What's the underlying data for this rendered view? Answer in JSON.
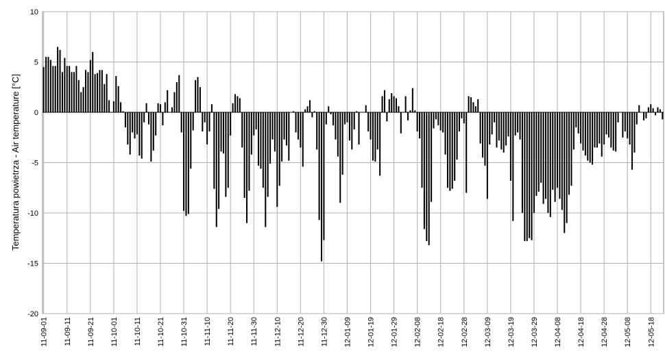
{
  "chart_data": {
    "type": "bar",
    "title": "",
    "xlabel": "",
    "ylabel": "Temperatura powietrza - Air temperature [°C]",
    "ylim": [
      -20,
      10
    ],
    "yticks": [
      -20,
      -15,
      -10,
      -5,
      0,
      5,
      10
    ],
    "grid": true,
    "legend": "none",
    "bar_color": "#000000",
    "x_start": "11-09-01",
    "x_end": "12-05-31",
    "xtick_labels": [
      "11-09-01",
      "11-09-11",
      "11-09-21",
      "11-10-01",
      "11-10-11",
      "11-10-21",
      "11-10-31",
      "11-11-10",
      "11-11-20",
      "11-11-30",
      "11-12-10",
      "11-12-20",
      "11-12-30",
      "12-01-09",
      "12-01-19",
      "12-01-29",
      "12-02-08",
      "12-02-18",
      "12-02-28",
      "12-03-09",
      "12-03-19",
      "12-03-29",
      "12-04-08",
      "12-04-18",
      "12-04-28",
      "12-05-08",
      "12-05-18",
      "12-05-28"
    ],
    "values": [
      4.5,
      5.5,
      5.5,
      5.2,
      4.6,
      4.6,
      6.5,
      6.2,
      4.0,
      5.4,
      4.6,
      4.6,
      4.0,
      4.0,
      4.6,
      3.2,
      2.0,
      2.5,
      4.2,
      4.0,
      5.2,
      6.0,
      3.8,
      3.9,
      4.2,
      4.2,
      2.8,
      3.8,
      1.2,
      0.0,
      1.1,
      3.6,
      2.6,
      1.0,
      0.1,
      -1.5,
      -3.2,
      -4.2,
      -2.0,
      -2.6,
      -2.2,
      -4.3,
      -4.6,
      -1.0,
      0.9,
      -1.2,
      -4.9,
      -3.8,
      -2.3,
      0.9,
      0.8,
      -1.3,
      1.0,
      2.2,
      0.0,
      0.5,
      2.0,
      3.0,
      3.7,
      -2.0,
      -9.8,
      -10.3,
      -10.1,
      -5.6,
      -1.8,
      3.2,
      3.5,
      2.5,
      -1.9,
      -1.0,
      -3.2,
      -1.9,
      0.8,
      -7.6,
      -11.4,
      -9.6,
      -3.9,
      -4.1,
      -8.4,
      -7.5,
      -2.3,
      0.9,
      1.8,
      1.6,
      1.4,
      -3.5,
      -8.5,
      -11.0,
      -7.8,
      -4.2,
      -2.3,
      -1.7,
      -5.3,
      -5.6,
      -7.5,
      -11.4,
      -8.4,
      -5.1,
      -2.7,
      -3.9,
      -9.4,
      -7.3,
      -4.9,
      -2.7,
      -3.3,
      -4.8,
      0.0,
      0.1,
      -2.0,
      -2.7,
      -3.5,
      -5.4,
      0.3,
      0.6,
      1.2,
      -0.5,
      0.1,
      -3.7,
      -10.7,
      -14.8,
      -12.7,
      -1.2,
      0.6,
      -0.2,
      -1.3,
      -2.7,
      -4.4,
      -9.0,
      -6.2,
      -1.2,
      -1.0,
      -2.8,
      -3.7,
      -1.7,
      0.1,
      -3.2,
      0.0,
      0.0,
      0.7,
      -1.9,
      -2.7,
      -4.8,
      -4.9,
      -3.7,
      -6.3,
      1.6,
      2.2,
      -0.9,
      1.3,
      1.9,
      1.6,
      1.4,
      0.6,
      -2.1,
      0.0,
      1.6,
      -0.8,
      0.2,
      2.4,
      0.2,
      -1.9,
      -2.6,
      -7.5,
      -11.6,
      -12.8,
      -13.2,
      -8.9,
      -1.6,
      -0.7,
      -1.3,
      -1.8,
      -2.0,
      -4.2,
      -7.5,
      -7.8,
      -7.6,
      -6.8,
      -4.7,
      -1.9,
      -0.6,
      -1.1,
      -8.0,
      1.6,
      1.5,
      1.0,
      0.6,
      1.3,
      -3.1,
      -4.5,
      -5.3,
      -8.6,
      -3.2,
      -2.2,
      -1.0,
      -3.5,
      -2.8,
      -3.7,
      -4.0,
      -3.3,
      -2.4,
      -6.8,
      -10.8,
      -2.3,
      -2.0,
      -2.7,
      -10.0,
      -12.8,
      -12.8,
      -12.5,
      -12.7,
      -10.0,
      -8.3,
      -7.9,
      -7.0,
      -9.1,
      -8.6,
      -10.0,
      -10.4,
      -7.7,
      -8.9,
      -7.5,
      -8.6,
      -9.7,
      -12.0,
      -11.0,
      -8.2,
      -7.3,
      -3.7,
      -1.5,
      -2.1,
      -3.1,
      -3.8,
      -4.3,
      -4.8,
      -5.0,
      -5.2,
      -3.5,
      -3.5,
      -3.1,
      -4.4,
      -3.2,
      -2.2,
      -2.5,
      -3.5,
      -3.8,
      -3.9,
      -1.0,
      0.0,
      -2.5,
      -1.9,
      -2.6,
      -3.2,
      -5.7,
      -4.0,
      -1.2,
      0.7,
      0.0,
      -0.8,
      -0.6,
      0.5,
      0.8,
      0.4,
      -0.3,
      0.5,
      0.3,
      -0.7
    ]
  }
}
